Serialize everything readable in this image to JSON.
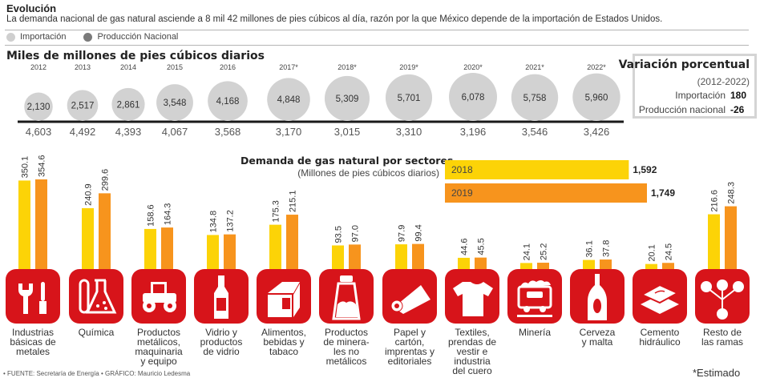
{
  "header": {
    "title": "Evolución",
    "subtitle": "La demanda nacional de gas natural asciende a 8 mil 42 millones de pies cúbicos al día, razón por la que México depende de la importación de Estados Unidos."
  },
  "legend": [
    {
      "label": "Importación",
      "color": "#cfcfcf"
    },
    {
      "label": "Producción Nacional",
      "color": "#7a7a7a"
    }
  ],
  "variation_box": {
    "title": "Variación porcentual",
    "period": "(2012-2022)",
    "rows": [
      {
        "label": "Importación",
        "value": "180"
      },
      {
        "label": "Producción nacional",
        "value": "-26"
      }
    ]
  },
  "sector_chart": {
    "title": "Demanda de gas natural por sectores",
    "subtitle": "(Millones de pies cúbicos diarios)"
  },
  "icons": [
    "wrench-screwdriver-icon",
    "flask-test-tube-icon",
    "tractor-icon",
    "bottle-icon",
    "milk-carton-icon",
    "salt-shaker-icon",
    "paper-roll-icon",
    "tshirt-icon",
    "mining-cart-icon",
    "beer-bottle-icon",
    "cement-bags-icon",
    "branches-icon"
  ],
  "footer": {
    "source": "• FUENTE: Secretaría de Energía • GRÁFICO: Mauricio Ledesma",
    "note": "*Estimado"
  },
  "colors": {
    "bubble": "#d2d2d2",
    "axis": "#1a1a1a",
    "y2018": "#fcd307",
    "y2019": "#f7941d",
    "icon_bg": "#d7141a"
  },
  "chart_data": [
    {
      "type": "scatter",
      "title": "Miles de millones de pies cúbicos diarios",
      "x": [
        "2012",
        "2013",
        "2014",
        "2015",
        "2016",
        "2017*",
        "2018*",
        "2019*",
        "2020*",
        "2021*",
        "2022*"
      ],
      "series": [
        {
          "name": "Importación",
          "values": [
            2130,
            2517,
            2861,
            3548,
            4168,
            4848,
            5309,
            5701,
            6078,
            5758,
            5960
          ],
          "labels": [
            "2,130",
            "2,517",
            "2,861",
            "3,548",
            "4,168",
            "4,848",
            "5,309",
            "5,701",
            "6,078",
            "5,758",
            "5,960"
          ]
        },
        {
          "name": "Producción Nacional",
          "values": [
            4603,
            4492,
            4393,
            4067,
            3568,
            3170,
            3015,
            3310,
            3196,
            3546,
            3426
          ],
          "labels": [
            "4,603",
            "4,492",
            "4,393",
            "4,067",
            "3,568",
            "3,170",
            "3,015",
            "3,310",
            "3,196",
            "3,546",
            "3,426"
          ]
        }
      ]
    },
    {
      "type": "bar",
      "title": "Demanda de gas natural por sectores (totales)",
      "orientation": "horizontal",
      "categories": [
        "2018",
        "2019"
      ],
      "values": [
        1592,
        1749
      ],
      "labels": [
        "1,592",
        "1,749"
      ]
    },
    {
      "type": "bar",
      "title": "Demanda de gas natural por sectores",
      "ylabel": "Millones de pies cúbicos diarios",
      "categories": [
        "Industrias\nbásicas de\nmetales",
        "Química",
        "Productos\nmetálicos,\nmaquinaria\ny equipo",
        "Vidrio y\nproductos\nde vidrio",
        "Alimentos,\nbebidas y\ntabaco",
        "Productos\nde minera-\nles no\nmetálicos",
        "Papel y\ncartón,\nimprentas y\neditoriales",
        "Textiles,\nprendas de\nvestir e\nindustria\ndel cuero",
        "Minería",
        "Cerveza\ny malta",
        "Cemento\nhidráulico",
        "Resto de\nlas ramas"
      ],
      "series": [
        {
          "name": "2018",
          "values": [
            350.1,
            240.9,
            158.6,
            134.8,
            175.3,
            93.5,
            97.9,
            44.6,
            24.1,
            36.1,
            20.1,
            216.6
          ],
          "labels": [
            "350.1",
            "240.9",
            "158.6",
            "134.8",
            "175.3",
            "93.5",
            "97.9",
            "44.6",
            "24.1",
            "36.1",
            "20.1",
            "216.6"
          ]
        },
        {
          "name": "2019",
          "values": [
            354.6,
            299.6,
            164.3,
            137.2,
            215.1,
            97.0,
            99.4,
            45.5,
            25.2,
            37.8,
            24.5,
            248.3
          ],
          "labels": [
            "354.6",
            "299.6",
            "164.3",
            "137.2",
            "215.1",
            "97.0",
            "99.4",
            "45.5",
            "25.2",
            "37.8",
            "24.5",
            "248.3"
          ]
        }
      ],
      "ylim": [
        0,
        360
      ]
    }
  ]
}
